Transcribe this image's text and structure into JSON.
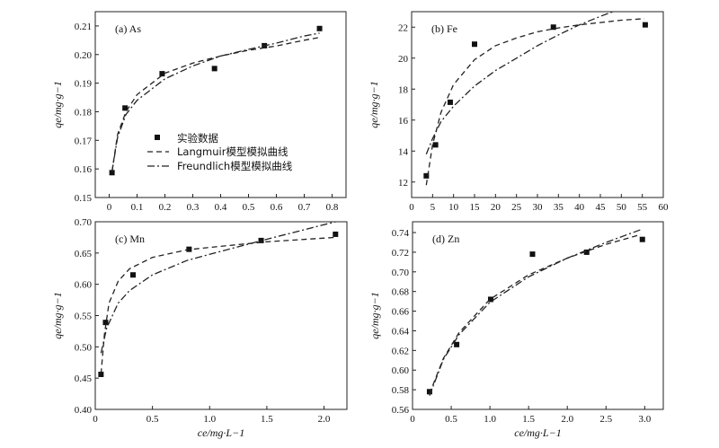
{
  "legend": {
    "experimental": "实验数据",
    "langmuir": "Langmuir模型模拟曲线",
    "freundlich": "Freundlich模型模拟曲线"
  },
  "chart_data": [
    {
      "type": "scatter",
      "panel_label": "(a) As",
      "ylabel": "qe/mg·g−1",
      "xlabel": "",
      "xlim": [
        -0.05,
        0.85
      ],
      "ylim": [
        0.15,
        0.215
      ],
      "xticks": [
        "0",
        "0.1",
        "0.2",
        "0.3",
        "0.4",
        "0.5",
        "0.6",
        "0.7",
        "0.8"
      ],
      "yticks": [
        "0.15",
        "0.16",
        "0.17",
        "0.18",
        "0.19",
        "0.20",
        "0.21"
      ],
      "legend_position": "center",
      "series": [
        {
          "name": "实验数据",
          "kind": "points",
          "x": [
            0.01,
            0.057,
            0.19,
            0.378,
            0.557,
            0.755
          ],
          "y": [
            0.1587,
            0.1813,
            0.1933,
            0.1951,
            0.2031,
            0.2091
          ]
        },
        {
          "name": "Langmuir模型模拟曲线",
          "kind": "dashed",
          "x": [
            0.01,
            0.03,
            0.06,
            0.1,
            0.2,
            0.3,
            0.4,
            0.5,
            0.6,
            0.7,
            0.755
          ],
          "y": [
            0.159,
            0.172,
            0.18,
            0.186,
            0.1935,
            0.197,
            0.1995,
            0.2015,
            0.203,
            0.205,
            0.206
          ]
        },
        {
          "name": "Freundlich模型模拟曲线",
          "kind": "dashdot",
          "x": [
            0.01,
            0.03,
            0.06,
            0.1,
            0.2,
            0.3,
            0.4,
            0.5,
            0.6,
            0.7,
            0.755
          ],
          "y": [
            0.159,
            0.171,
            0.179,
            0.184,
            0.1915,
            0.196,
            0.1995,
            0.2018,
            0.204,
            0.2065,
            0.2075
          ]
        }
      ]
    },
    {
      "type": "scatter",
      "panel_label": "(b) Fe",
      "ylabel": "qe/mg·g−1",
      "xlabel": "",
      "xlim": [
        0,
        60
      ],
      "ylim": [
        11,
        23
      ],
      "xticks": [
        "0",
        "5",
        "10",
        "15",
        "20",
        "25",
        "30",
        "35",
        "40",
        "45",
        "50",
        "55",
        "60"
      ],
      "yticks": [
        "12",
        "14",
        "16",
        "18",
        "20",
        "22"
      ],
      "series": [
        {
          "name": "实验数据",
          "kind": "points",
          "x": [
            3.5,
            5.7,
            9.2,
            15,
            33.8,
            55.7
          ],
          "y": [
            12.4,
            14.4,
            17.15,
            20.9,
            22.0,
            22.15
          ]
        },
        {
          "name": "Langmuir模型模拟曲线",
          "kind": "dashed",
          "x": [
            3.5,
            5,
            7,
            10,
            15,
            20,
            25,
            30,
            35,
            40,
            45,
            50,
            55.5
          ],
          "y": [
            11.8,
            14.4,
            16.5,
            18.3,
            19.9,
            20.8,
            21.3,
            21.7,
            21.95,
            22.15,
            22.3,
            22.45,
            22.55
          ]
        },
        {
          "name": "Freundlich模型模拟曲线",
          "kind": "dashdot",
          "x": [
            3.5,
            5,
            7,
            10,
            15,
            20,
            25,
            30,
            35,
            40,
            45,
            48
          ],
          "y": [
            13.8,
            14.8,
            15.9,
            16.9,
            18.2,
            19.2,
            20.0,
            20.8,
            21.5,
            22.15,
            22.7,
            23.0
          ]
        }
      ]
    },
    {
      "type": "scatter",
      "panel_label": "(c) Mn",
      "ylabel": "qe/mg·g−1",
      "xlabel": "ce/mg·L−1",
      "xlim": [
        0,
        2.2
      ],
      "ylim": [
        0.4,
        0.7
      ],
      "xticks": [
        "0",
        "0.5",
        "1.0",
        "1.5",
        "2.0"
      ],
      "yticks": [
        "0.40",
        "0.45",
        "0.50",
        "0.55",
        "0.60",
        "0.65",
        "0.70"
      ],
      "series": [
        {
          "name": "实验数据",
          "kind": "points",
          "x": [
            0.05,
            0.09,
            0.33,
            0.82,
            1.45,
            2.1
          ],
          "y": [
            0.456,
            0.539,
            0.615,
            0.656,
            0.67,
            0.68
          ]
        },
        {
          "name": "Langmuir模型模拟曲线",
          "kind": "dashed",
          "x": [
            0.05,
            0.08,
            0.12,
            0.2,
            0.3,
            0.5,
            0.8,
            1.0,
            1.5,
            2.1
          ],
          "y": [
            0.457,
            0.52,
            0.57,
            0.605,
            0.625,
            0.643,
            0.655,
            0.659,
            0.668,
            0.675
          ]
        },
        {
          "name": "Freundlich模型模拟曲线",
          "kind": "dashdot",
          "x": [
            0.05,
            0.1,
            0.2,
            0.3,
            0.5,
            0.8,
            1.0,
            1.5,
            2.1
          ],
          "y": [
            0.49,
            0.53,
            0.57,
            0.59,
            0.615,
            0.638,
            0.648,
            0.672,
            0.7
          ]
        }
      ]
    },
    {
      "type": "scatter",
      "panel_label": "(d) Zn",
      "ylabel": "qe/mg·g−1",
      "xlabel": "ce/mg·L−1",
      "xlim": [
        0,
        3.24
      ],
      "ylim": [
        0.56,
        0.751
      ],
      "xticks": [
        "0",
        "0.5",
        "1.0",
        "1.5",
        "2.0",
        "2.5",
        "3.0"
      ],
      "yticks": [
        "0.56",
        "0.58",
        "0.60",
        "0.62",
        "0.64",
        "0.66",
        "0.68",
        "0.70",
        "0.72",
        "0.74"
      ],
      "series": [
        {
          "name": "实验数据",
          "kind": "points",
          "x": [
            0.22,
            0.57,
            1.01,
            1.55,
            2.25,
            2.97
          ],
          "y": [
            0.578,
            0.626,
            0.672,
            0.718,
            0.72,
            0.733
          ]
        },
        {
          "name": "Langmuir模型模拟曲线",
          "kind": "dashed",
          "x": [
            0.22,
            0.4,
            0.6,
            1.0,
            1.5,
            2.0,
            2.5,
            2.95
          ],
          "y": [
            0.576,
            0.612,
            0.638,
            0.672,
            0.697,
            0.714,
            0.728,
            0.738
          ]
        },
        {
          "name": "Freundlich模型模拟曲线",
          "kind": "dashdot",
          "x": [
            0.22,
            0.4,
            0.6,
            1.0,
            1.5,
            2.0,
            2.5,
            2.95
          ],
          "y": [
            0.574,
            0.611,
            0.636,
            0.669,
            0.695,
            0.714,
            0.73,
            0.743
          ]
        }
      ]
    }
  ]
}
